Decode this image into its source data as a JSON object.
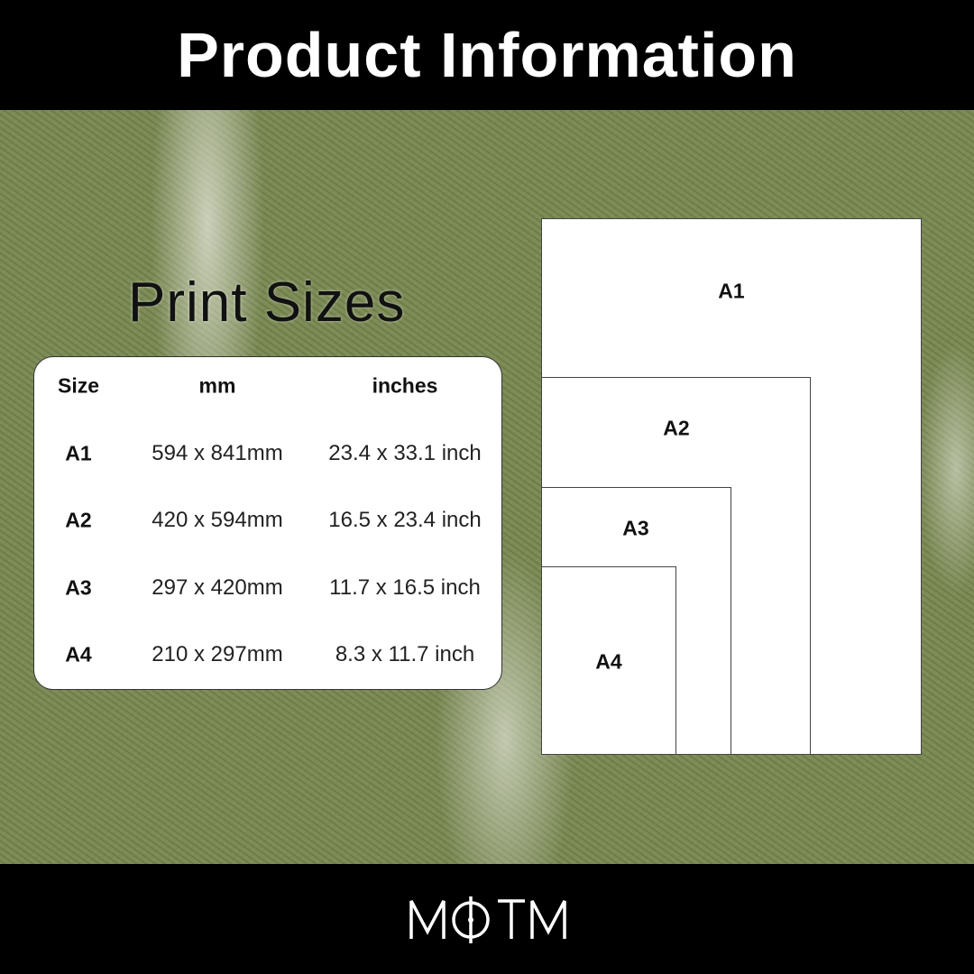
{
  "header": {
    "title": "Product Information"
  },
  "section": {
    "title": "Print Sizes"
  },
  "table": {
    "columns": [
      "Size",
      "mm",
      "inches"
    ],
    "rows": [
      {
        "size": "A1",
        "mm": "594 x 841mm",
        "inches": "23.4 x 33.1 inch"
      },
      {
        "size": "A2",
        "mm": "420 x 594mm",
        "inches": "16.5 x 23.4 inch"
      },
      {
        "size": "A3",
        "mm": "297 x 420mm",
        "inches": "11.7 x 16.5 inch"
      },
      {
        "size": "A4",
        "mm": "210 x 297mm",
        "inches": "8.3 x 11.7 inch"
      }
    ]
  },
  "diagram": {
    "labels": [
      "A1",
      "A2",
      "A3",
      "A4"
    ]
  },
  "footer": {
    "logo_text": "MOTM"
  },
  "colors": {
    "bar": "#000000",
    "card": "#ffffff",
    "grass": "#7d8b57"
  }
}
